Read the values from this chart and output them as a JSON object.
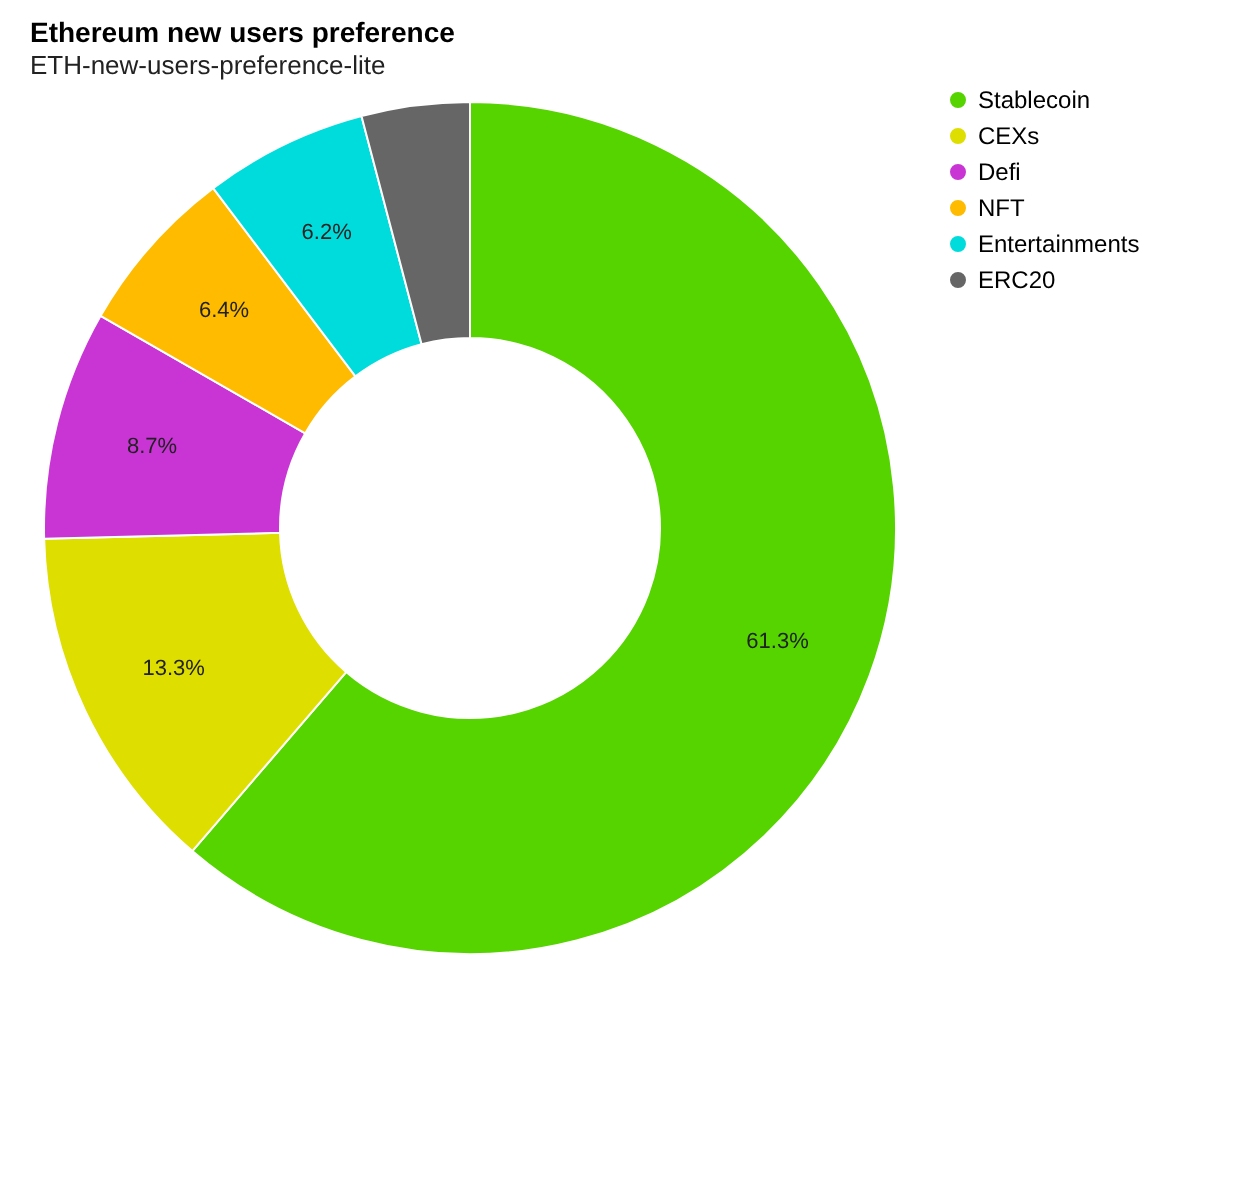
{
  "chart_data": {
    "type": "donut",
    "title": "Ethereum new users preference",
    "subtitle": "ETH-new-users-preference-lite",
    "categories": [
      "Stablecoin",
      "CEXs",
      "Defi",
      "NFT",
      "Entertainments",
      "ERC20"
    ],
    "values": [
      61.3,
      13.3,
      8.7,
      6.4,
      6.2,
      4.1
    ],
    "value_labels": [
      "61.3%",
      "13.3%",
      "8.7%",
      "6.4%",
      "6.2%",
      null
    ],
    "colors": [
      "#55d400",
      "#dede00",
      "#c935d4",
      "#ffbb00",
      "#00dcdc",
      "#666666"
    ],
    "legend": "right"
  }
}
